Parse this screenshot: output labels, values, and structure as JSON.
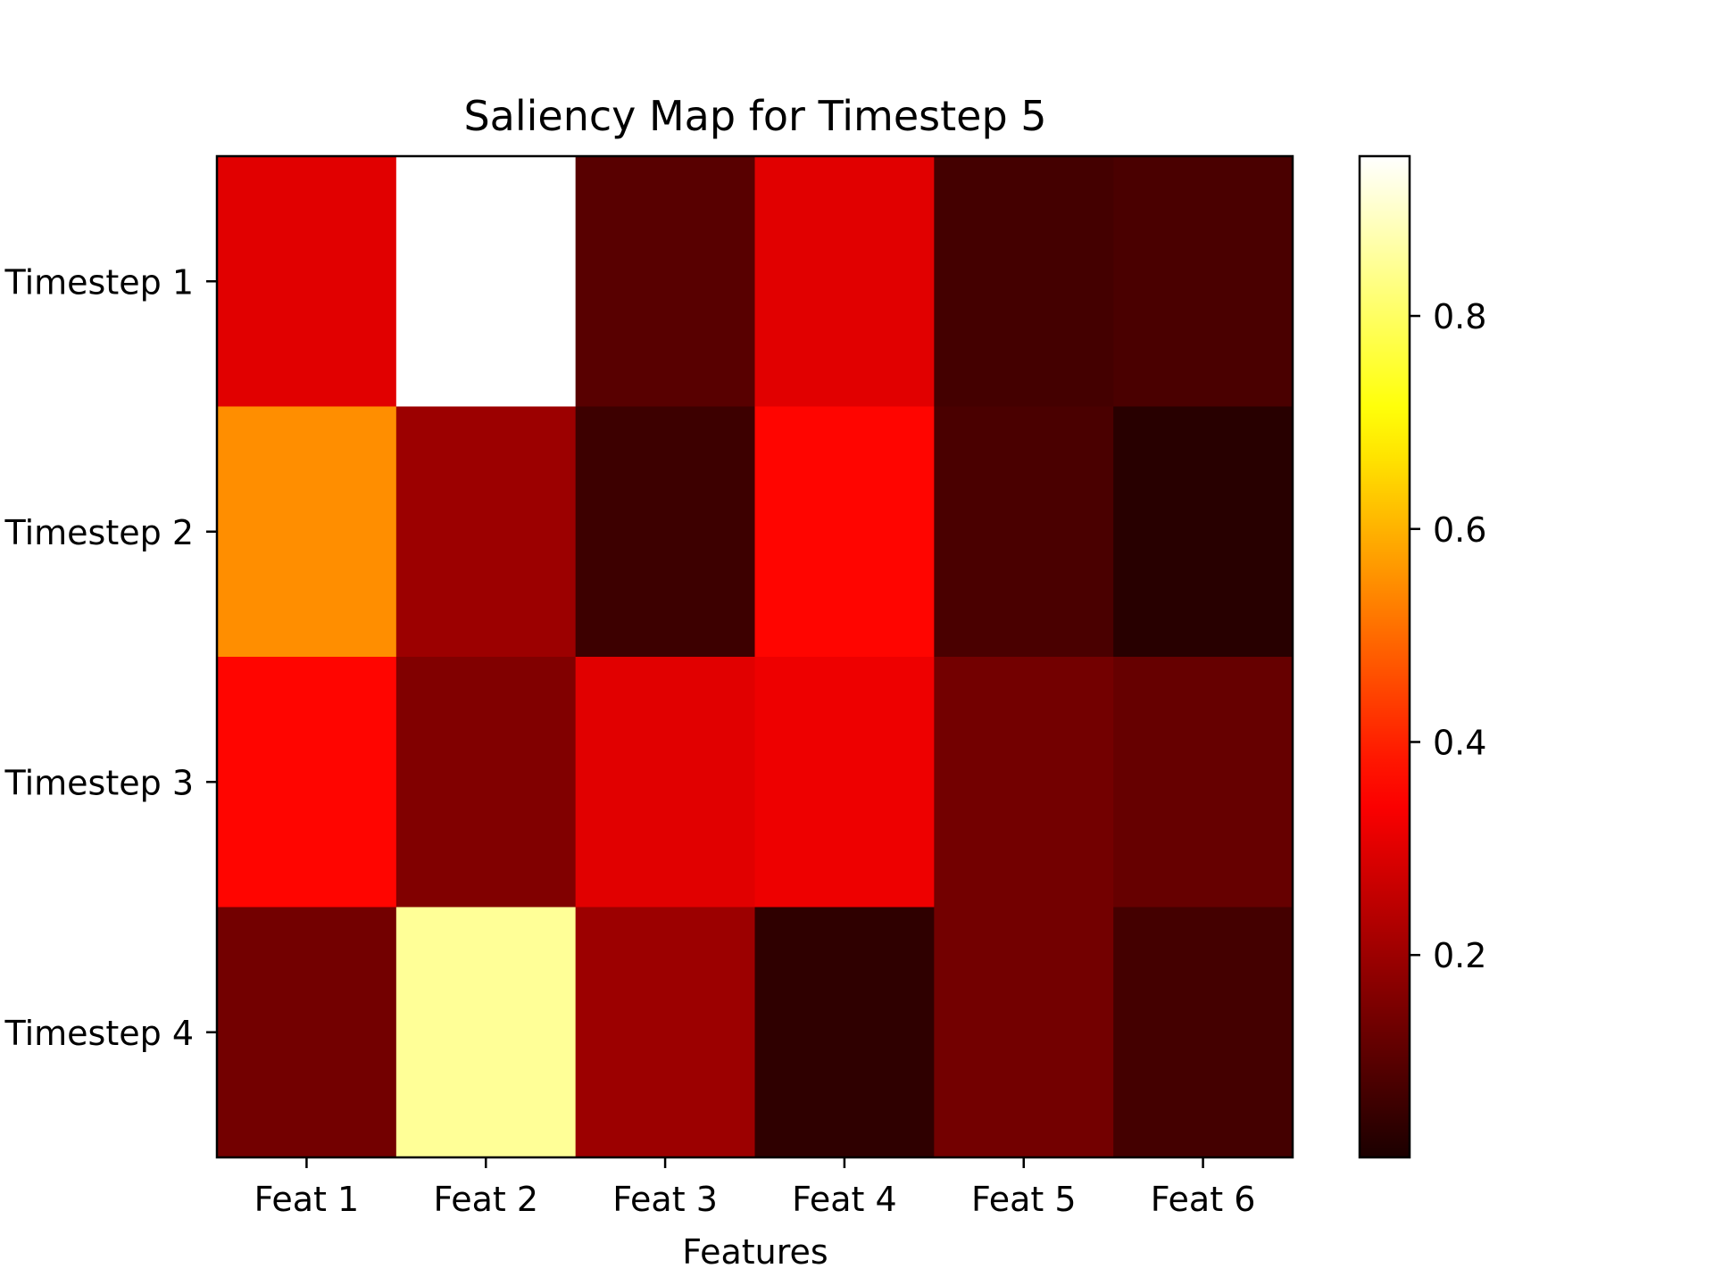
{
  "chart_data": {
    "type": "heatmap",
    "title": "Saliency Map for Timestep 5",
    "xlabel": "Features",
    "ylabel": "",
    "x_categories": [
      "Feat 1",
      "Feat 2",
      "Feat 3",
      "Feat 4",
      "Feat 5",
      "Feat 6"
    ],
    "y_categories": [
      "Timestep 1",
      "Timestep 2",
      "Timestep 3",
      "Timestep 4"
    ],
    "values": [
      [
        0.3,
        0.95,
        0.1,
        0.3,
        0.07,
        0.08
      ],
      [
        0.55,
        0.2,
        0.06,
        0.36,
        0.08,
        0.03
      ],
      [
        0.36,
        0.16,
        0.3,
        0.32,
        0.14,
        0.12
      ],
      [
        0.14,
        0.85,
        0.2,
        0.04,
        0.14,
        0.07
      ]
    ],
    "colormap": "hot",
    "colorbar": {
      "range": [
        0.01,
        0.95
      ],
      "ticks": [
        0.2,
        0.4,
        0.6,
        0.8
      ],
      "tick_labels": [
        "0.2",
        "0.4",
        "0.6",
        "0.8"
      ]
    },
    "grid": false,
    "legend": "none"
  }
}
